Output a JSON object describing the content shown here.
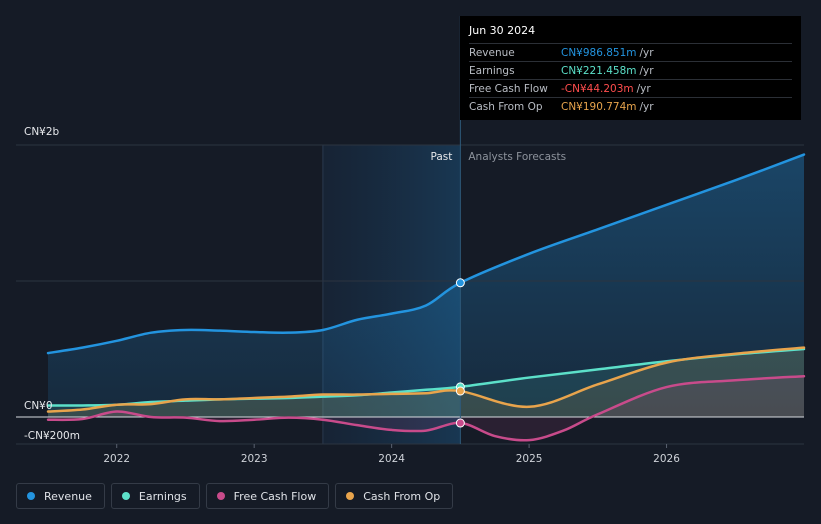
{
  "colors": {
    "background": "#151b26",
    "revenue": "#2394df",
    "earnings": "#5ce0c9",
    "free_cash_flow": "#c84b8b",
    "cash_from_op": "#e8a44c",
    "negative": "#ff4d4d"
  },
  "tooltip": {
    "date": "Jun 30 2024",
    "rows": [
      {
        "label": "Revenue",
        "value": "CN¥986.851m",
        "unit": "/yr",
        "color": "#2394df"
      },
      {
        "label": "Earnings",
        "value": "CN¥221.458m",
        "unit": "/yr",
        "color": "#5ce0c9"
      },
      {
        "label": "Free Cash Flow",
        "value": "-CN¥44.203m",
        "unit": "/yr",
        "color": "#ff4d4d"
      },
      {
        "label": "Cash From Op",
        "value": "CN¥190.774m",
        "unit": "/yr",
        "color": "#e8a44c"
      }
    ]
  },
  "legend": [
    {
      "label": "Revenue",
      "color": "#2394df"
    },
    {
      "label": "Earnings",
      "color": "#5ce0c9"
    },
    {
      "label": "Free Cash Flow",
      "color": "#c84b8b"
    },
    {
      "label": "Cash From Op",
      "color": "#e8a44c"
    }
  ],
  "chart_data": {
    "type": "line",
    "title": "",
    "unit": "CN¥m",
    "ylim": [
      -200,
      2000
    ],
    "y_tick_labels": [
      {
        "value": 2000,
        "label": "CN¥2b"
      },
      {
        "value": 0,
        "label": "CN¥0"
      },
      {
        "value": -200,
        "label": "-CN¥200m"
      }
    ],
    "xlim": [
      2021.5,
      2027.0
    ],
    "x_ticks": [
      2022,
      2023,
      2024,
      2025,
      2026
    ],
    "x_tick_labels": [
      "2022",
      "2023",
      "2024",
      "2025",
      "2026"
    ],
    "past_label": "Past",
    "forecast_label": "Analysts Forecasts",
    "past_shade_start": 2023.5,
    "divider_x": 2024.5,
    "highlight_date": "Jun 30 2024",
    "series": [
      {
        "name": "Revenue",
        "color": "#2394df",
        "points": [
          [
            2021.5,
            470
          ],
          [
            2021.75,
            510
          ],
          [
            2022.0,
            560
          ],
          [
            2022.25,
            620
          ],
          [
            2022.5,
            640
          ],
          [
            2022.75,
            635
          ],
          [
            2023.0,
            625
          ],
          [
            2023.25,
            620
          ],
          [
            2023.5,
            640
          ],
          [
            2023.75,
            715
          ],
          [
            2024.0,
            760
          ],
          [
            2024.25,
            820
          ],
          [
            2024.5,
            986.851
          ],
          [
            2025.0,
            1200
          ],
          [
            2025.5,
            1380
          ],
          [
            2026.0,
            1560
          ],
          [
            2026.5,
            1740
          ],
          [
            2027.0,
            1930
          ]
        ]
      },
      {
        "name": "Earnings",
        "color": "#5ce0c9",
        "points": [
          [
            2021.5,
            85
          ],
          [
            2021.75,
            85
          ],
          [
            2022.0,
            90
          ],
          [
            2022.25,
            110
          ],
          [
            2022.5,
            120
          ],
          [
            2022.75,
            130
          ],
          [
            2023.0,
            135
          ],
          [
            2023.25,
            140
          ],
          [
            2023.5,
            150
          ],
          [
            2023.75,
            160
          ],
          [
            2024.0,
            180
          ],
          [
            2024.25,
            200
          ],
          [
            2024.5,
            221.458
          ],
          [
            2025.0,
            290
          ],
          [
            2025.5,
            350
          ],
          [
            2026.0,
            410
          ],
          [
            2026.5,
            460
          ],
          [
            2027.0,
            500
          ]
        ]
      },
      {
        "name": "Free Cash Flow",
        "color": "#c84b8b",
        "points": [
          [
            2021.5,
            -20
          ],
          [
            2021.75,
            -15
          ],
          [
            2022.0,
            40
          ],
          [
            2022.25,
            0
          ],
          [
            2022.5,
            -5
          ],
          [
            2022.75,
            -30
          ],
          [
            2023.0,
            -20
          ],
          [
            2023.25,
            -5
          ],
          [
            2023.5,
            -20
          ],
          [
            2023.75,
            -60
          ],
          [
            2024.0,
            -95
          ],
          [
            2024.25,
            -100
          ],
          [
            2024.5,
            -44.203
          ],
          [
            2024.75,
            -140
          ],
          [
            2025.0,
            -170
          ],
          [
            2025.25,
            -100
          ],
          [
            2025.5,
            20
          ],
          [
            2026.0,
            220
          ],
          [
            2026.5,
            270
          ],
          [
            2027.0,
            300
          ]
        ]
      },
      {
        "name": "Cash From Op",
        "color": "#e8a44c",
        "points": [
          [
            2021.5,
            40
          ],
          [
            2021.75,
            55
          ],
          [
            2022.0,
            90
          ],
          [
            2022.25,
            95
          ],
          [
            2022.5,
            130
          ],
          [
            2022.75,
            130
          ],
          [
            2023.0,
            140
          ],
          [
            2023.25,
            150
          ],
          [
            2023.5,
            165
          ],
          [
            2023.75,
            165
          ],
          [
            2024.0,
            170
          ],
          [
            2024.25,
            175
          ],
          [
            2024.5,
            190.774
          ],
          [
            2025.0,
            75
          ],
          [
            2025.5,
            240
          ],
          [
            2026.0,
            400
          ],
          [
            2026.5,
            465
          ],
          [
            2027.0,
            510
          ]
        ]
      }
    ]
  }
}
